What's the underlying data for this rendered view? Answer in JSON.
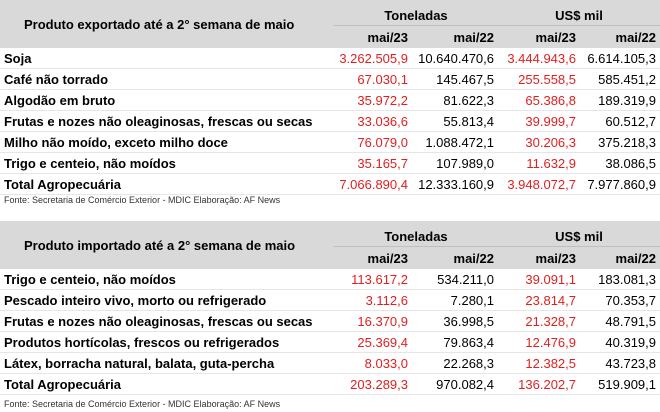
{
  "export": {
    "title": "Produto exportado até a 2° semana de maio",
    "group_ton": "Toneladas",
    "group_usd": "US$ mil",
    "col_headers": [
      "mai/23",
      "mai/22",
      "mai/23",
      "mai/22"
    ],
    "rows": [
      {
        "label": "Soja",
        "v": [
          "3.262.505,9",
          "10.640.470,6",
          "3.444.943,6",
          "6.614.105,3"
        ]
      },
      {
        "label": "Café não torrado",
        "v": [
          "67.030,1",
          "145.467,5",
          "255.558,5",
          "585.451,2"
        ]
      },
      {
        "label": "Algodão em bruto",
        "v": [
          "35.972,2",
          "81.622,3",
          "65.386,8",
          "189.319,9"
        ]
      },
      {
        "label": "Frutas e nozes não oleaginosas, frescas ou secas",
        "v": [
          "33.036,6",
          "55.813,4",
          "39.999,7",
          "60.512,7"
        ]
      },
      {
        "label": "Milho não moído, exceto milho doce",
        "v": [
          "76.079,0",
          "1.088.472,1",
          "30.206,3",
          "375.218,3"
        ]
      },
      {
        "label": "Trigo e centeio, não moídos",
        "v": [
          "35.165,7",
          "107.989,0",
          "11.632,9",
          "38.086,5"
        ]
      },
      {
        "label": "Total Agropecuária",
        "v": [
          "7.066.890,4",
          "12.333.160,9",
          "3.948.072,7",
          "7.977.860,9"
        ]
      }
    ],
    "source": "Fonte: Secretaria de Comércio Exterior - MDIC    Elaboração: AF News"
  },
  "import": {
    "title": "Produto importado até a 2° semana de maio",
    "group_ton": "Toneladas",
    "group_usd": "US$ mil",
    "col_headers": [
      "mai/23",
      "mai/22",
      "mai/23",
      "mai/22"
    ],
    "rows": [
      {
        "label": "Trigo e centeio, não moídos",
        "v": [
          "113.617,2",
          "534.211,0",
          "39.091,1",
          "183.081,3"
        ]
      },
      {
        "label": "Pescado inteiro vivo, morto ou refrigerado",
        "v": [
          "3.112,6",
          "7.280,1",
          "23.814,7",
          "70.353,7"
        ]
      },
      {
        "label": "Frutas e nozes não oleaginosas, frescas ou secas",
        "v": [
          "16.370,9",
          "36.998,5",
          "21.328,7",
          "48.791,5"
        ]
      },
      {
        "label": "Produtos hortícolas, frescos ou refrigerados",
        "v": [
          "25.369,4",
          "79.863,4",
          "12.476,9",
          "40.319,9"
        ]
      },
      {
        "label": "Látex, borracha natural, balata, guta-percha",
        "v": [
          "8.033,0",
          "22.268,3",
          "12.382,5",
          "43.723,8"
        ]
      },
      {
        "label": "Total Agropecuária",
        "v": [
          "203.289,3",
          "970.082,4",
          "136.202,7",
          "519.909,1"
        ]
      }
    ],
    "source": "Fonte: Secretaria de Comércio Exterior - MDIC    Elaboração: AF News"
  },
  "colors": {
    "current_year_value": "#e02020",
    "header_bg": "#d9d9d9"
  }
}
